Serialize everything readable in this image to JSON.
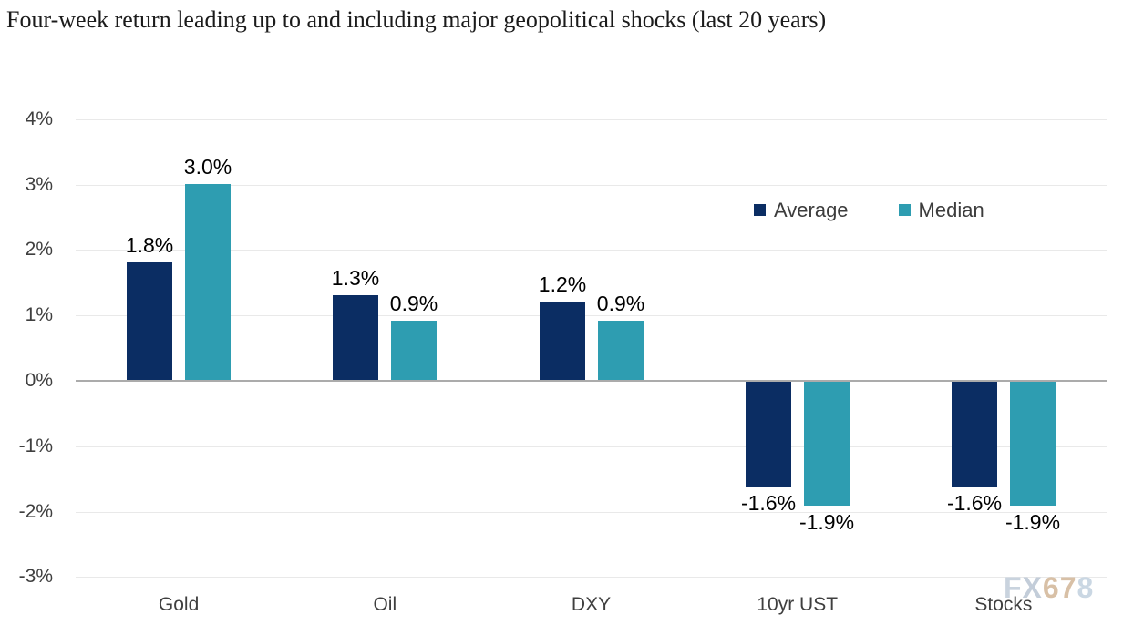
{
  "page": {
    "title": "Four-week return leading up to and including major geopolitical shocks (last 20 years)",
    "watermark": {
      "text": "FX678",
      "char_colors": [
        "#c9d3de",
        "#c3cdd9",
        "#d8c0a6",
        "#d8c0a6",
        "#cad7e3"
      ]
    }
  },
  "colors": {
    "average_bar": "#0b2d63",
    "median_bar": "#2e9db1",
    "gridline": "#e9e9e9",
    "zero_line": "#ababab",
    "axis_text": "#3f3f3f",
    "value_label_text": "#000000",
    "title_text": "#1b1b1b",
    "legend_text": "#3d3d3d"
  },
  "legend": [
    {
      "label": "Average",
      "color": "#0b2d63"
    },
    {
      "label": "Median",
      "color": "#2e9db1"
    }
  ],
  "chart_data": {
    "type": "bar",
    "title": "Four-week return leading up to and including major geopolitical shocks (last 20 years)",
    "categories": [
      "Gold",
      "Oil",
      "DXY",
      "10yr UST",
      "Stocks"
    ],
    "series": [
      {
        "name": "Average",
        "color": "#0b2d63",
        "values": [
          1.8,
          1.3,
          1.2,
          -1.6,
          -1.6
        ],
        "labels": [
          "1.8%",
          "1.3%",
          "1.2%",
          "-1.6%",
          "-1.6%"
        ]
      },
      {
        "name": "Median",
        "color": "#2e9db1",
        "values": [
          3.0,
          0.9,
          0.9,
          -1.9,
          -1.9
        ],
        "labels": [
          "3.0%",
          "0.9%",
          "0.9%",
          "-1.9%",
          "-1.9%"
        ]
      }
    ],
    "xlabel": "",
    "ylabel": "",
    "ylim": [
      -3,
      4
    ],
    "grid": true,
    "legend_position": "inside-top-right",
    "y_ticks": [
      {
        "value": 4,
        "label": "4%"
      },
      {
        "value": 3,
        "label": "3%"
      },
      {
        "value": 2,
        "label": "2%"
      },
      {
        "value": 1,
        "label": "1%"
      },
      {
        "value": 0,
        "label": "0%"
      },
      {
        "value": -1,
        "label": "-1%"
      },
      {
        "value": -2,
        "label": "-2%"
      },
      {
        "value": -3,
        "label": "-3%"
      }
    ]
  }
}
